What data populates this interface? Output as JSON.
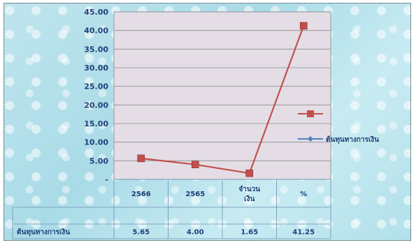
{
  "chart_data": {
    "type": "line",
    "categories": [
      "2566",
      "2565",
      "จำนวนเงิน",
      "%"
    ],
    "category_lines": [
      [
        "2566"
      ],
      [
        "2565"
      ],
      [
        "จำนวน",
        "เงิน"
      ],
      [
        "%"
      ]
    ],
    "series": [
      {
        "name": "",
        "values": [
          5.65,
          4.0,
          1.65,
          41.25
        ],
        "color": "#c0504d",
        "marker": "square"
      }
    ],
    "legend": [
      {
        "label": "",
        "color": "#c0504d",
        "marker": "square"
      },
      {
        "label": "ต้นทุนทางการเงิน",
        "color": "#4f81bd",
        "marker": "diamond"
      }
    ],
    "ylim": [
      0,
      45
    ],
    "ytick_labels": [
      "45.00",
      "40.00",
      "35.00",
      "30.00",
      "25.00",
      "20.00",
      "15.00",
      "10.00",
      "5.00",
      "-"
    ],
    "data_table": {
      "row_label": "ต้นทุนทางการเงิน",
      "values": [
        "5.65",
        "4.00",
        "1.65",
        "41.25"
      ]
    },
    "grid": true,
    "legend_position": "right",
    "plot_background": "#e4dde6",
    "axis_text_color": "#1f3f78"
  }
}
